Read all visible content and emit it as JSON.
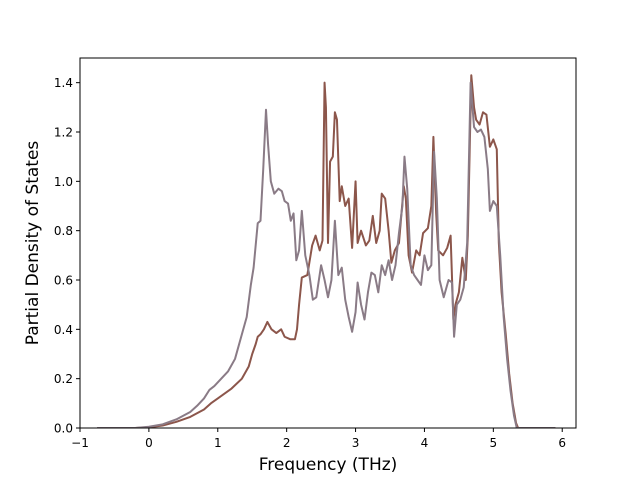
{
  "chart_data": {
    "type": "line",
    "title": "",
    "xlabel": "Frequency (THz)",
    "ylabel": "Partial Density of States",
    "xlim": [
      -1.0,
      6.2
    ],
    "ylim": [
      0.0,
      1.5
    ],
    "xticks": [
      -1,
      0,
      1,
      2,
      3,
      4,
      5,
      6
    ],
    "yticks": [
      0.0,
      0.2,
      0.4,
      0.6,
      0.8,
      1.0,
      1.2,
      1.4
    ],
    "xtick_labels": [
      "−1",
      "0",
      "1",
      "2",
      "3",
      "4",
      "5",
      "6"
    ],
    "ytick_labels": [
      "0.0",
      "0.2",
      "0.4",
      "0.6",
      "0.8",
      "1.0",
      "1.2",
      "1.4"
    ],
    "grid": false,
    "series": [
      {
        "color": "#8c564b",
        "points": [
          [
            -0.75,
            0.0
          ],
          [
            -0.2,
            0.0
          ],
          [
            0.0,
            0.003
          ],
          [
            0.2,
            0.01
          ],
          [
            0.4,
            0.025
          ],
          [
            0.6,
            0.045
          ],
          [
            0.8,
            0.075
          ],
          [
            0.9,
            0.1
          ],
          [
            1.0,
            0.12
          ],
          [
            1.2,
            0.16
          ],
          [
            1.35,
            0.2
          ],
          [
            1.45,
            0.25
          ],
          [
            1.5,
            0.3
          ],
          [
            1.55,
            0.34
          ],
          [
            1.58,
            0.37
          ],
          [
            1.62,
            0.38
          ],
          [
            1.67,
            0.4
          ],
          [
            1.72,
            0.43
          ],
          [
            1.78,
            0.4
          ],
          [
            1.85,
            0.385
          ],
          [
            1.92,
            0.4
          ],
          [
            1.97,
            0.37
          ],
          [
            2.05,
            0.36
          ],
          [
            2.12,
            0.36
          ],
          [
            2.15,
            0.4
          ],
          [
            2.18,
            0.5
          ],
          [
            2.22,
            0.61
          ],
          [
            2.3,
            0.62
          ],
          [
            2.37,
            0.74
          ],
          [
            2.42,
            0.78
          ],
          [
            2.48,
            0.72
          ],
          [
            2.52,
            0.76
          ],
          [
            2.55,
            1.4
          ],
          [
            2.57,
            1.3
          ],
          [
            2.6,
            0.75
          ],
          [
            2.63,
            1.08
          ],
          [
            2.67,
            1.1
          ],
          [
            2.7,
            1.28
          ],
          [
            2.73,
            1.25
          ],
          [
            2.77,
            0.92
          ],
          [
            2.8,
            0.98
          ],
          [
            2.85,
            0.9
          ],
          [
            2.9,
            0.93
          ],
          [
            2.95,
            0.73
          ],
          [
            3.0,
            1.0
          ],
          [
            3.03,
            0.75
          ],
          [
            3.08,
            0.8
          ],
          [
            3.15,
            0.74
          ],
          [
            3.2,
            0.76
          ],
          [
            3.25,
            0.86
          ],
          [
            3.3,
            0.75
          ],
          [
            3.35,
            0.8
          ],
          [
            3.38,
            0.95
          ],
          [
            3.43,
            0.93
          ],
          [
            3.48,
            0.8
          ],
          [
            3.52,
            0.67
          ],
          [
            3.57,
            0.72
          ],
          [
            3.63,
            0.75
          ],
          [
            3.7,
            0.98
          ],
          [
            3.73,
            0.93
          ],
          [
            3.77,
            0.7
          ],
          [
            3.82,
            0.63
          ],
          [
            3.88,
            0.72
          ],
          [
            3.93,
            0.7
          ],
          [
            3.98,
            0.79
          ],
          [
            4.05,
            0.81
          ],
          [
            4.1,
            0.9
          ],
          [
            4.13,
            1.18
          ],
          [
            4.17,
            0.87
          ],
          [
            4.2,
            0.72
          ],
          [
            4.27,
            0.7
          ],
          [
            4.33,
            0.73
          ],
          [
            4.38,
            0.78
          ],
          [
            4.42,
            0.44
          ],
          [
            4.45,
            0.5
          ],
          [
            4.5,
            0.55
          ],
          [
            4.55,
            0.69
          ],
          [
            4.6,
            0.6
          ],
          [
            4.63,
            0.78
          ],
          [
            4.68,
            1.43
          ],
          [
            4.72,
            1.3
          ],
          [
            4.75,
            1.25
          ],
          [
            4.8,
            1.23
          ],
          [
            4.85,
            1.28
          ],
          [
            4.9,
            1.27
          ],
          [
            4.95,
            1.14
          ],
          [
            5.0,
            1.17
          ],
          [
            5.05,
            1.13
          ],
          [
            5.08,
            0.75
          ],
          [
            5.12,
            0.55
          ],
          [
            5.18,
            0.38
          ],
          [
            5.23,
            0.22
          ],
          [
            5.28,
            0.1
          ],
          [
            5.33,
            0.02
          ],
          [
            5.36,
            0.0
          ],
          [
            5.9,
            0.0
          ]
        ]
      },
      {
        "color": "#8a7b86",
        "points": [
          [
            -0.75,
            0.0
          ],
          [
            -0.2,
            0.0
          ],
          [
            0.0,
            0.005
          ],
          [
            0.2,
            0.015
          ],
          [
            0.4,
            0.035
          ],
          [
            0.6,
            0.065
          ],
          [
            0.7,
            0.09
          ],
          [
            0.8,
            0.12
          ],
          [
            0.88,
            0.155
          ],
          [
            0.95,
            0.17
          ],
          [
            1.05,
            0.2
          ],
          [
            1.15,
            0.23
          ],
          [
            1.25,
            0.28
          ],
          [
            1.35,
            0.38
          ],
          [
            1.42,
            0.45
          ],
          [
            1.48,
            0.58
          ],
          [
            1.52,
            0.65
          ],
          [
            1.58,
            0.83
          ],
          [
            1.62,
            0.84
          ],
          [
            1.66,
            1.05
          ],
          [
            1.7,
            1.29
          ],
          [
            1.73,
            1.15
          ],
          [
            1.77,
            1.0
          ],
          [
            1.82,
            0.95
          ],
          [
            1.88,
            0.97
          ],
          [
            1.93,
            0.96
          ],
          [
            1.97,
            0.92
          ],
          [
            2.02,
            0.91
          ],
          [
            2.06,
            0.84
          ],
          [
            2.1,
            0.87
          ],
          [
            2.14,
            0.68
          ],
          [
            2.18,
            0.72
          ],
          [
            2.22,
            0.88
          ],
          [
            2.27,
            0.7
          ],
          [
            2.33,
            0.62
          ],
          [
            2.38,
            0.52
          ],
          [
            2.43,
            0.53
          ],
          [
            2.5,
            0.66
          ],
          [
            2.55,
            0.6
          ],
          [
            2.6,
            0.53
          ],
          [
            2.65,
            0.6
          ],
          [
            2.7,
            0.84
          ],
          [
            2.75,
            0.62
          ],
          [
            2.8,
            0.65
          ],
          [
            2.85,
            0.52
          ],
          [
            2.9,
            0.45
          ],
          [
            2.95,
            0.39
          ],
          [
            3.0,
            0.47
          ],
          [
            3.03,
            0.59
          ],
          [
            3.08,
            0.5
          ],
          [
            3.13,
            0.44
          ],
          [
            3.18,
            0.55
          ],
          [
            3.23,
            0.63
          ],
          [
            3.28,
            0.62
          ],
          [
            3.33,
            0.55
          ],
          [
            3.38,
            0.66
          ],
          [
            3.43,
            0.62
          ],
          [
            3.48,
            0.68
          ],
          [
            3.53,
            0.6
          ],
          [
            3.58,
            0.66
          ],
          [
            3.63,
            0.79
          ],
          [
            3.68,
            0.9
          ],
          [
            3.71,
            1.1
          ],
          [
            3.75,
            0.97
          ],
          [
            3.8,
            0.66
          ],
          [
            3.85,
            0.62
          ],
          [
            3.9,
            0.6
          ],
          [
            3.95,
            0.58
          ],
          [
            4.0,
            0.7
          ],
          [
            4.05,
            0.64
          ],
          [
            4.1,
            0.66
          ],
          [
            4.14,
            1.12
          ],
          [
            4.18,
            0.93
          ],
          [
            4.22,
            0.6
          ],
          [
            4.28,
            0.53
          ],
          [
            4.35,
            0.6
          ],
          [
            4.4,
            0.59
          ],
          [
            4.43,
            0.37
          ],
          [
            4.47,
            0.5
          ],
          [
            4.52,
            0.52
          ],
          [
            4.57,
            0.57
          ],
          [
            4.62,
            0.75
          ],
          [
            4.67,
            1.4
          ],
          [
            4.72,
            1.22
          ],
          [
            4.77,
            1.2
          ],
          [
            4.82,
            1.21
          ],
          [
            4.87,
            1.18
          ],
          [
            4.92,
            1.05
          ],
          [
            4.95,
            0.88
          ],
          [
            5.0,
            0.92
          ],
          [
            5.05,
            0.9
          ],
          [
            5.1,
            0.7
          ],
          [
            5.15,
            0.45
          ],
          [
            5.2,
            0.28
          ],
          [
            5.25,
            0.15
          ],
          [
            5.3,
            0.05
          ],
          [
            5.34,
            0.0
          ],
          [
            5.9,
            0.0
          ]
        ]
      }
    ]
  }
}
